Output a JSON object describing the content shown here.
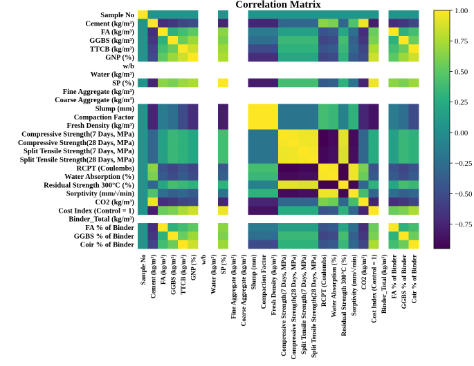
{
  "chart_data": {
    "type": "heatmap",
    "title": "Correlation Matrix",
    "labels": [
      "Sample No",
      "Cement (kg/m³)",
      "FA (kg/m³)",
      "GGBS (kg/m³)",
      "TTCB (kg/m³)",
      "GNP (%)",
      "w/b",
      "Water (kg/m³)",
      "SP (%)",
      "Fine Aggregate (kg/m³)",
      "Coarse Aggregate (kg/m³)",
      "Slump (mm)",
      "Compaction Factor",
      "Fresh Density (kg/m³)",
      "Compressive Strength(7 Days, MPa)",
      "Compressive Strength(28 Days, MPa)",
      "Split Tensile Strength(7 Days, MPa)",
      "Split Tensile Strength(28 Days, MPa)",
      "RCPT (Coulombs)",
      "Water Absorption (%)",
      "Residual Strength 300°C (%)",
      "Sorptivity (mm/√min)",
      "CO2 (kg/m³)",
      "Cost Index (Control = 1)",
      "Binder_Total (kg/m³)",
      "FA % of Binder",
      "GGBS % of Binder",
      "Coir % of Binder"
    ],
    "undefined_rows": [
      "w/b",
      "Water (kg/m³)",
      "Fine Aggregate (kg/m³)",
      "Coarse Aggregate (kg/m³)",
      "Binder_Total (kg/m³)"
    ],
    "matrix": [
      [
        1.0,
        0.05,
        0.05,
        0.05,
        0.05,
        0.05,
        null,
        null,
        0.05,
        null,
        null,
        0.05,
        0.05,
        0.05,
        0.05,
        0.05,
        0.05,
        0.05,
        0.05,
        0.05,
        0.05,
        0.05,
        0.05,
        0.05,
        null,
        0.05,
        0.05,
        0.05
      ],
      [
        0.05,
        1.0,
        -0.7,
        -0.65,
        -0.55,
        -0.5,
        null,
        null,
        -0.75,
        null,
        null,
        -0.75,
        -0.75,
        -0.75,
        -0.3,
        -0.3,
        -0.3,
        -0.3,
        0.65,
        0.6,
        -0.3,
        0.45,
        0.95,
        -0.8,
        null,
        -0.7,
        -0.65,
        -0.55
      ],
      [
        0.05,
        -0.7,
        1.0,
        0.3,
        0.4,
        0.5,
        null,
        null,
        0.65,
        null,
        null,
        -0.15,
        -0.15,
        -0.15,
        0.15,
        0.15,
        0.15,
        0.15,
        -0.45,
        -0.4,
        0.2,
        -0.25,
        -0.7,
        0.55,
        null,
        1.0,
        0.3,
        0.4
      ],
      [
        0.05,
        -0.65,
        0.3,
        1.0,
        0.55,
        0.7,
        null,
        null,
        0.6,
        null,
        null,
        -0.25,
        -0.25,
        -0.25,
        0.35,
        0.35,
        0.35,
        0.35,
        -0.55,
        -0.5,
        0.4,
        -0.35,
        -0.65,
        0.6,
        null,
        0.3,
        1.0,
        0.55
      ],
      [
        0.05,
        -0.55,
        0.4,
        0.55,
        1.0,
        0.85,
        null,
        null,
        0.7,
        null,
        null,
        -0.5,
        -0.5,
        -0.5,
        0.3,
        0.3,
        0.3,
        0.3,
        -0.45,
        -0.4,
        0.35,
        -0.3,
        -0.55,
        0.75,
        null,
        0.4,
        0.55,
        1.0
      ],
      [
        0.05,
        -0.5,
        0.5,
        0.7,
        0.85,
        1.0,
        null,
        null,
        0.75,
        null,
        null,
        -0.7,
        -0.7,
        -0.7,
        0.2,
        0.2,
        0.2,
        0.2,
        -0.55,
        -0.5,
        0.3,
        -0.4,
        -0.5,
        0.85,
        null,
        0.5,
        0.7,
        0.85
      ],
      [
        null,
        null,
        null,
        null,
        null,
        null,
        null,
        null,
        null,
        null,
        null,
        null,
        null,
        null,
        null,
        null,
        null,
        null,
        null,
        null,
        null,
        null,
        null,
        null,
        null,
        null,
        null,
        null
      ],
      [
        null,
        null,
        null,
        null,
        null,
        null,
        null,
        null,
        null,
        null,
        null,
        null,
        null,
        null,
        null,
        null,
        null,
        null,
        null,
        null,
        null,
        null,
        null,
        null,
        null,
        null,
        null,
        null
      ],
      [
        0.05,
        -0.75,
        0.65,
        0.6,
        0.7,
        0.75,
        null,
        null,
        1.0,
        null,
        null,
        -0.8,
        -0.8,
        -0.8,
        0.4,
        0.4,
        0.4,
        0.4,
        -0.4,
        -0.35,
        0.3,
        -0.2,
        -0.75,
        0.95,
        null,
        0.65,
        0.6,
        0.7
      ],
      [
        null,
        null,
        null,
        null,
        null,
        null,
        null,
        null,
        null,
        null,
        null,
        null,
        null,
        null,
        null,
        null,
        null,
        null,
        null,
        null,
        null,
        null,
        null,
        null,
        null,
        null,
        null,
        null
      ],
      [
        null,
        null,
        null,
        null,
        null,
        null,
        null,
        null,
        null,
        null,
        null,
        null,
        null,
        null,
        null,
        null,
        null,
        null,
        null,
        null,
        null,
        null,
        null,
        null,
        null,
        null,
        null,
        null
      ],
      [
        0.05,
        -0.75,
        -0.15,
        -0.25,
        -0.5,
        -0.7,
        null,
        null,
        -0.8,
        null,
        null,
        1.0,
        1.0,
        1.0,
        -0.2,
        -0.2,
        -0.2,
        -0.2,
        0.4,
        0.35,
        -0.1,
        0.3,
        -0.75,
        -0.85,
        null,
        -0.15,
        -0.25,
        -0.5
      ],
      [
        0.05,
        -0.75,
        -0.15,
        -0.25,
        -0.5,
        -0.7,
        null,
        null,
        -0.8,
        null,
        null,
        1.0,
        1.0,
        1.0,
        -0.2,
        -0.2,
        -0.2,
        -0.2,
        0.4,
        0.35,
        -0.1,
        0.3,
        -0.75,
        -0.85,
        null,
        -0.15,
        -0.25,
        -0.5
      ],
      [
        0.05,
        -0.75,
        -0.15,
        -0.25,
        -0.5,
        -0.7,
        null,
        null,
        -0.8,
        null,
        null,
        1.0,
        1.0,
        1.0,
        -0.2,
        -0.2,
        -0.2,
        -0.2,
        0.4,
        0.35,
        -0.1,
        0.3,
        -0.75,
        -0.85,
        null,
        -0.15,
        -0.25,
        -0.5
      ],
      [
        0.05,
        -0.3,
        0.15,
        0.35,
        0.3,
        0.2,
        null,
        null,
        0.4,
        null,
        null,
        -0.2,
        -0.2,
        -0.2,
        1.0,
        0.98,
        0.95,
        0.95,
        -0.95,
        -0.9,
        0.92,
        -0.9,
        -0.3,
        0.25,
        null,
        0.15,
        0.35,
        0.3
      ],
      [
        0.05,
        -0.3,
        0.15,
        0.35,
        0.3,
        0.2,
        null,
        null,
        0.4,
        null,
        null,
        -0.2,
        -0.2,
        -0.2,
        0.98,
        1.0,
        0.96,
        0.96,
        -0.95,
        -0.9,
        0.92,
        -0.9,
        -0.3,
        0.25,
        null,
        0.15,
        0.35,
        0.3
      ],
      [
        0.05,
        -0.3,
        0.15,
        0.35,
        0.3,
        0.2,
        null,
        null,
        0.4,
        null,
        null,
        -0.2,
        -0.2,
        -0.2,
        0.95,
        0.96,
        1.0,
        0.98,
        -0.92,
        -0.88,
        0.9,
        -0.88,
        -0.3,
        0.25,
        null,
        0.15,
        0.35,
        0.3
      ],
      [
        0.05,
        -0.3,
        0.15,
        0.35,
        0.3,
        0.2,
        null,
        null,
        0.4,
        null,
        null,
        -0.2,
        -0.2,
        -0.2,
        0.95,
        0.96,
        0.98,
        1.0,
        -0.92,
        -0.88,
        0.9,
        -0.88,
        -0.3,
        0.25,
        null,
        0.15,
        0.35,
        0.3
      ],
      [
        0.05,
        0.65,
        -0.45,
        -0.55,
        -0.45,
        -0.55,
        null,
        null,
        -0.4,
        null,
        null,
        0.4,
        0.4,
        0.4,
        -0.95,
        -0.95,
        -0.92,
        -0.92,
        1.0,
        0.98,
        -0.95,
        0.95,
        0.6,
        -0.45,
        null,
        -0.45,
        -0.55,
        -0.45
      ],
      [
        0.05,
        0.6,
        -0.4,
        -0.5,
        -0.4,
        -0.5,
        null,
        null,
        -0.35,
        null,
        null,
        0.35,
        0.35,
        0.35,
        -0.9,
        -0.9,
        -0.88,
        -0.88,
        0.98,
        1.0,
        -0.95,
        0.95,
        0.55,
        -0.4,
        null,
        -0.4,
        -0.5,
        -0.4
      ],
      [
        0.05,
        -0.3,
        0.2,
        0.4,
        0.35,
        0.3,
        null,
        null,
        0.3,
        null,
        null,
        -0.1,
        -0.1,
        -0.1,
        0.92,
        0.92,
        0.9,
        0.9,
        -0.95,
        -0.95,
        1.0,
        -0.92,
        -0.3,
        0.3,
        null,
        0.2,
        0.4,
        0.35
      ],
      [
        0.05,
        0.45,
        -0.25,
        -0.35,
        -0.3,
        -0.4,
        null,
        null,
        -0.2,
        null,
        null,
        0.3,
        0.3,
        0.3,
        -0.9,
        -0.9,
        -0.88,
        -0.88,
        0.95,
        0.95,
        -0.92,
        1.0,
        0.4,
        -0.3,
        null,
        -0.25,
        -0.35,
        -0.3
      ],
      [
        0.05,
        0.95,
        -0.7,
        -0.65,
        -0.55,
        -0.5,
        null,
        null,
        -0.75,
        null,
        null,
        -0.75,
        -0.75,
        -0.75,
        -0.3,
        -0.3,
        -0.3,
        -0.3,
        0.6,
        0.55,
        -0.3,
        0.4,
        1.0,
        -0.75,
        null,
        -0.7,
        -0.65,
        -0.55
      ],
      [
        0.05,
        -0.8,
        0.55,
        0.6,
        0.75,
        0.85,
        null,
        null,
        0.95,
        null,
        null,
        -0.85,
        -0.85,
        -0.85,
        0.25,
        0.25,
        0.25,
        0.25,
        -0.45,
        -0.4,
        0.3,
        -0.3,
        -0.75,
        1.0,
        null,
        0.55,
        0.6,
        0.75
      ],
      [
        null,
        null,
        null,
        null,
        null,
        null,
        null,
        null,
        null,
        null,
        null,
        null,
        null,
        null,
        null,
        null,
        null,
        null,
        null,
        null,
        null,
        null,
        null,
        null,
        null,
        null,
        null,
        null
      ],
      [
        0.05,
        -0.7,
        1.0,
        0.3,
        0.4,
        0.5,
        null,
        null,
        0.65,
        null,
        null,
        -0.15,
        -0.15,
        -0.15,
        0.15,
        0.15,
        0.15,
        0.15,
        -0.45,
        -0.4,
        0.2,
        -0.25,
        -0.7,
        0.55,
        null,
        1.0,
        0.3,
        0.4
      ],
      [
        0.05,
        -0.65,
        0.3,
        1.0,
        0.55,
        0.7,
        null,
        null,
        0.6,
        null,
        null,
        -0.25,
        -0.25,
        -0.25,
        0.35,
        0.35,
        0.35,
        0.35,
        -0.55,
        -0.5,
        0.4,
        -0.35,
        -0.65,
        0.6,
        null,
        0.3,
        1.0,
        0.55
      ],
      [
        0.05,
        -0.55,
        0.4,
        0.55,
        1.0,
        0.85,
        null,
        null,
        0.7,
        null,
        null,
        -0.5,
        -0.5,
        -0.5,
        0.3,
        0.3,
        0.3,
        0.3,
        -0.45,
        -0.4,
        0.35,
        -0.3,
        -0.55,
        0.75,
        null,
        0.4,
        0.55,
        1.0
      ]
    ],
    "colormap": "viridis",
    "vmin": -0.95,
    "vmax": 1.0,
    "colorbar_ticks": [
      "1.00",
      "0.75",
      "0.50",
      "0.25",
      "0.00",
      "−0.25",
      "−0.50",
      "−0.75"
    ],
    "colorbar_tick_values": [
      1.0,
      0.75,
      0.5,
      0.25,
      0.0,
      -0.25,
      -0.5,
      -0.75
    ]
  }
}
